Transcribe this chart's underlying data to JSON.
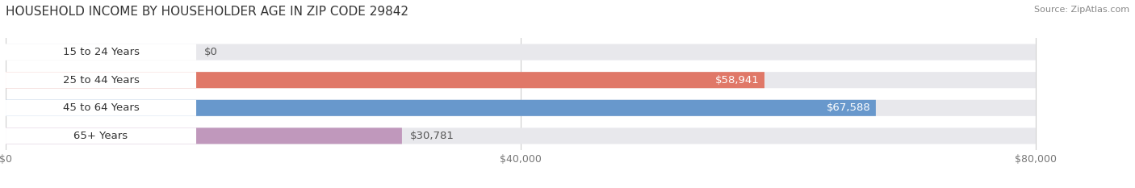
{
  "title": "HOUSEHOLD INCOME BY HOUSEHOLDER AGE IN ZIP CODE 29842",
  "source": "Source: ZipAtlas.com",
  "categories": [
    "15 to 24 Years",
    "25 to 44 Years",
    "45 to 64 Years",
    "65+ Years"
  ],
  "values": [
    0,
    58941,
    67588,
    30781
  ],
  "bar_colors": [
    "#f0c088",
    "#e07868",
    "#6898cc",
    "#c098bc"
  ],
  "bar_bg_color": "#e8e8ec",
  "value_labels": [
    "$0",
    "$58,941",
    "$67,588",
    "$30,781"
  ],
  "xlim": [
    0,
    80000
  ],
  "xticks": [
    0,
    40000,
    80000
  ],
  "xtick_labels": [
    "$0",
    "$40,000",
    "$80,000"
  ],
  "background_color": "#ffffff",
  "title_fontsize": 11,
  "label_fontsize": 9.5,
  "tick_fontsize": 9,
  "source_fontsize": 8,
  "value_label_inside_color": "#ffffff",
  "value_label_outside_color": "#555555"
}
